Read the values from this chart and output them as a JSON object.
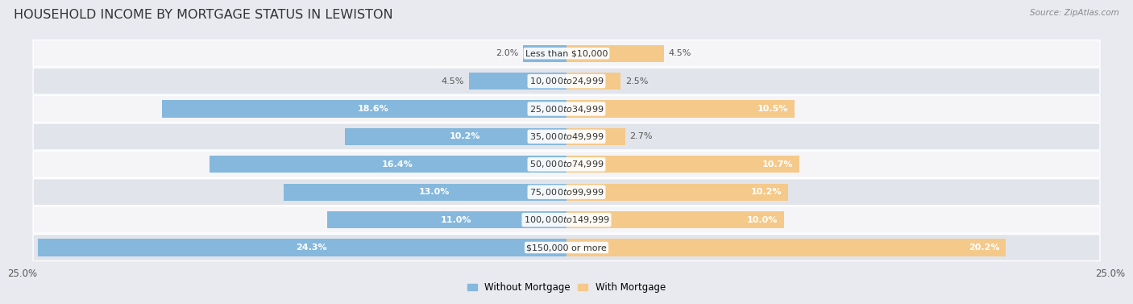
{
  "title": "HOUSEHOLD INCOME BY MORTGAGE STATUS IN LEWISTON",
  "source": "Source: ZipAtlas.com",
  "categories": [
    "Less than $10,000",
    "$10,000 to $24,999",
    "$25,000 to $34,999",
    "$35,000 to $49,999",
    "$50,000 to $74,999",
    "$75,000 to $99,999",
    "$100,000 to $149,999",
    "$150,000 or more"
  ],
  "without_mortgage": [
    2.0,
    4.5,
    18.6,
    10.2,
    16.4,
    13.0,
    11.0,
    24.3
  ],
  "with_mortgage": [
    4.5,
    2.5,
    10.5,
    2.7,
    10.7,
    10.2,
    10.0,
    20.2
  ],
  "color_without": "#85b8dc",
  "color_with": "#f5c98a",
  "xlim": 25.0,
  "bar_height": 0.62,
  "background_color": "#e8eaf0",
  "row_bg_even": "#f5f5f8",
  "row_bg_odd": "#e2e4eb",
  "title_fontsize": 11.5,
  "label_fontsize": 8.0,
  "axis_fontsize": 8.5,
  "legend_fontsize": 8.5,
  "source_fontsize": 7.5
}
